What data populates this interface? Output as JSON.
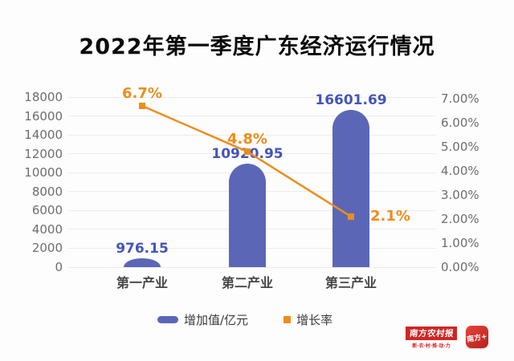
{
  "title": "2022年第一季度广东经济运行情况",
  "chart_data": {
    "type": "bar",
    "subtype": "bar-line-combo",
    "categories": [
      "第一产业",
      "第二产业",
      "第三产业"
    ],
    "series": [
      {
        "name": "增加值/亿元",
        "kind": "bar",
        "axis": "left",
        "color": "#5b67b6",
        "label_color": "#4355b8",
        "values": [
          976.15,
          10920.95,
          16601.69
        ],
        "data_labels": [
          "976.15",
          "10920.95",
          "16601.69"
        ]
      },
      {
        "name": "增长率",
        "kind": "line",
        "axis": "right",
        "color": "#ec8d1e",
        "values": [
          6.7,
          4.8,
          2.1
        ],
        "data_labels": [
          "6.7%",
          "4.8%",
          "2.1%"
        ]
      }
    ],
    "left_axis": {
      "min": 0,
      "max": 18000,
      "step": 2000,
      "ticks": [
        "0",
        "2000",
        "4000",
        "6000",
        "8000",
        "10000",
        "12000",
        "14000",
        "16000",
        "18000"
      ]
    },
    "right_axis": {
      "min": 0,
      "max": 7,
      "step": 1,
      "ticks": [
        "0.00%",
        "1.00%",
        "2.00%",
        "3.00%",
        "4.00%",
        "5.00%",
        "6.00%",
        "7.00%"
      ]
    },
    "grid": true,
    "legend_position": "bottom"
  },
  "legend": {
    "items": [
      {
        "label": "增加值/亿元",
        "marker": "pill",
        "color": "#5b67b6"
      },
      {
        "label": "增长率",
        "marker": "square",
        "color": "#ec8d1e"
      }
    ]
  },
  "footer": {
    "newspaper_logo": "南方农村报",
    "newspaper_tagline": "新·农·村·推·动·力",
    "app_logo": "南方+"
  }
}
